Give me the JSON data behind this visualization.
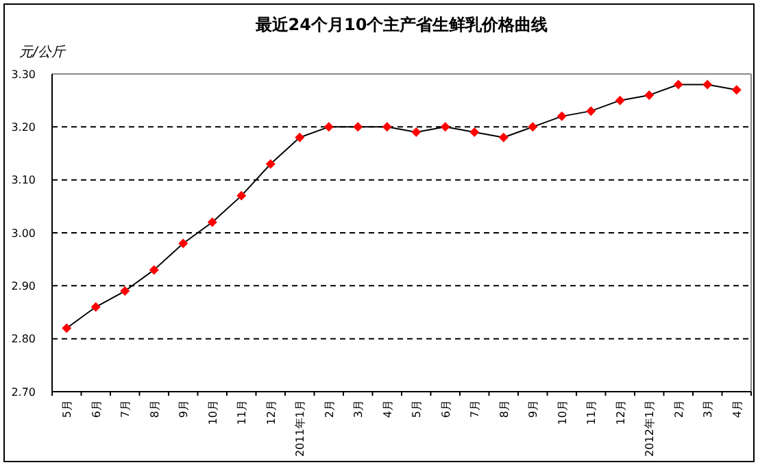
{
  "chart_data": {
    "type": "line",
    "title": "最近24个月10个主产省生鲜乳价格曲线",
    "ylabel": "元/公斤",
    "categories": [
      "5月",
      "6月",
      "7月",
      "8月",
      "9月",
      "10月",
      "11月",
      "12月",
      "2011年1月",
      "2月",
      "3月",
      "4月",
      "5月",
      "6月",
      "7月",
      "8月",
      "9月",
      "10月",
      "11月",
      "12月",
      "2012年1月",
      "2月",
      "3月",
      "4月"
    ],
    "series": [
      {
        "color": "#ff0000",
        "values": [
          2.82,
          2.86,
          2.89,
          2.93,
          2.98,
          3.02,
          3.07,
          3.13,
          3.18,
          3.2,
          3.2,
          3.2,
          3.19,
          3.2,
          3.19,
          3.18,
          3.2,
          3.22,
          3.23,
          3.25,
          3.26,
          3.28,
          3.28,
          3.27
        ]
      }
    ],
    "ylim": [
      2.7,
      3.3
    ],
    "yticks": [
      {
        "value": 2.7,
        "label": "2.70"
      },
      {
        "value": 2.8,
        "label": "2.80"
      },
      {
        "value": 2.9,
        "label": "2.90"
      },
      {
        "value": 3.0,
        "label": "3.00"
      },
      {
        "value": 3.1,
        "label": "3.10"
      },
      {
        "value": 3.2,
        "label": "3.20"
      },
      {
        "value": 3.3,
        "label": "3.30"
      }
    ],
    "grid": "y",
    "marker": "diamond",
    "line_style": "solid"
  }
}
